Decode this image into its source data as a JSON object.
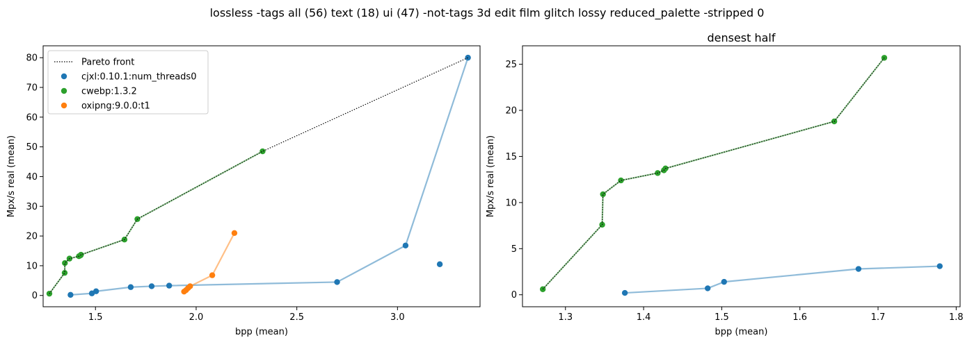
{
  "suptitle": "lossless -tags all (56) text (18) ui (47) -not-tags 3d edit film glitch lossy reduced_palette -stripped 0",
  "colors": {
    "cjxl": "#1f77b4",
    "cwebp": "#2ca02c",
    "oxipng": "#ff7f0e",
    "pareto": "#000000"
  },
  "chart_data": [
    {
      "type": "scatter",
      "title": "",
      "xlabel": "bpp (mean)",
      "ylabel": "Mpx/s real (mean)",
      "xlim": [
        1.24,
        3.41
      ],
      "ylim": [
        -3.8,
        84
      ],
      "xticks": [
        1.5,
        2.0,
        2.5,
        3.0
      ],
      "xtick_labels": [
        "1.5",
        "2.0",
        "2.5",
        "3.0"
      ],
      "yticks": [
        0,
        10,
        20,
        30,
        40,
        50,
        60,
        70,
        80
      ],
      "ytick_labels": [
        "0",
        "10",
        "20",
        "30",
        "40",
        "50",
        "60",
        "70",
        "80"
      ],
      "legend": {
        "position": "top-left",
        "entries": [
          "Pareto front",
          "cjxl:0.10.1:num_threads0",
          "cwebp:1.3.2",
          "oxipng:9.0.0:t1"
        ]
      },
      "pareto": {
        "name": "Pareto front",
        "points": [
          [
            1.271,
            0.6
          ],
          [
            1.347,
            7.6
          ],
          [
            1.348,
            10.9
          ],
          [
            1.371,
            12.4
          ],
          [
            1.418,
            13.2
          ],
          [
            1.426,
            13.5
          ],
          [
            1.428,
            13.7
          ],
          [
            1.644,
            18.8
          ],
          [
            1.708,
            25.7
          ],
          [
            2.33,
            48.5
          ],
          [
            3.35,
            80.0
          ]
        ]
      },
      "series": [
        {
          "name": "cjxl:0.10.1:num_threads0",
          "key": "cjxl",
          "points": [
            [
              1.376,
              0.2
            ],
            [
              1.482,
              0.7
            ],
            [
              1.503,
              1.4
            ],
            [
              1.675,
              2.8
            ],
            [
              1.779,
              3.1
            ],
            [
              1.866,
              3.3
            ],
            [
              2.7,
              4.5
            ],
            [
              3.04,
              16.8
            ],
            [
              3.35,
              80.0
            ]
          ],
          "extra_points": [
            [
              3.21,
              10.5
            ]
          ]
        },
        {
          "name": "cwebp:1.3.2",
          "key": "cwebp",
          "points": [
            [
              1.271,
              0.6
            ],
            [
              1.347,
              7.6
            ],
            [
              1.348,
              10.9
            ],
            [
              1.371,
              12.4
            ],
            [
              1.418,
              13.2
            ],
            [
              1.426,
              13.5
            ],
            [
              1.428,
              13.7
            ],
            [
              1.644,
              18.8
            ],
            [
              1.708,
              25.7
            ],
            [
              2.33,
              48.5
            ]
          ],
          "extra_points": []
        },
        {
          "name": "oxipng:9.0.0:t1",
          "key": "oxipng",
          "points": [
            [
              1.94,
              1.3
            ],
            [
              1.95,
              1.8
            ],
            [
              1.96,
              2.5
            ],
            [
              1.97,
              3.1
            ],
            [
              2.08,
              6.8
            ],
            [
              2.19,
              21.0
            ]
          ],
          "extra_points": []
        }
      ]
    },
    {
      "type": "scatter",
      "title": "densest half",
      "xlabel": "bpp (mean)",
      "ylabel": "Mpx/s real (mean)",
      "xlim": [
        1.245,
        1.805
      ],
      "ylim": [
        -1.3,
        27
      ],
      "xticks": [
        1.3,
        1.4,
        1.5,
        1.6,
        1.7,
        1.8
      ],
      "xtick_labels": [
        "1.3",
        "1.4",
        "1.5",
        "1.6",
        "1.7",
        "1.8"
      ],
      "yticks": [
        0,
        5,
        10,
        15,
        20,
        25
      ],
      "ytick_labels": [
        "0",
        "5",
        "10",
        "15",
        "20",
        "25"
      ],
      "pareto": {
        "name": "Pareto front",
        "points": [
          [
            1.271,
            0.6
          ],
          [
            1.347,
            7.6
          ],
          [
            1.348,
            10.9
          ],
          [
            1.371,
            12.4
          ],
          [
            1.418,
            13.2
          ],
          [
            1.426,
            13.5
          ],
          [
            1.428,
            13.7
          ],
          [
            1.644,
            18.8
          ],
          [
            1.708,
            25.7
          ]
        ]
      },
      "series": [
        {
          "name": "cjxl:0.10.1:num_threads0",
          "key": "cjxl",
          "points": [
            [
              1.376,
              0.2
            ],
            [
              1.482,
              0.7
            ],
            [
              1.503,
              1.4
            ],
            [
              1.675,
              2.8
            ],
            [
              1.779,
              3.1
            ]
          ],
          "extra_points": []
        },
        {
          "name": "cwebp:1.3.2",
          "key": "cwebp",
          "points": [
            [
              1.271,
              0.6
            ],
            [
              1.347,
              7.6
            ],
            [
              1.348,
              10.9
            ],
            [
              1.371,
              12.4
            ],
            [
              1.418,
              13.2
            ],
            [
              1.426,
              13.5
            ],
            [
              1.428,
              13.7
            ],
            [
              1.644,
              18.8
            ],
            [
              1.708,
              25.7
            ]
          ],
          "extra_points": []
        }
      ]
    }
  ]
}
